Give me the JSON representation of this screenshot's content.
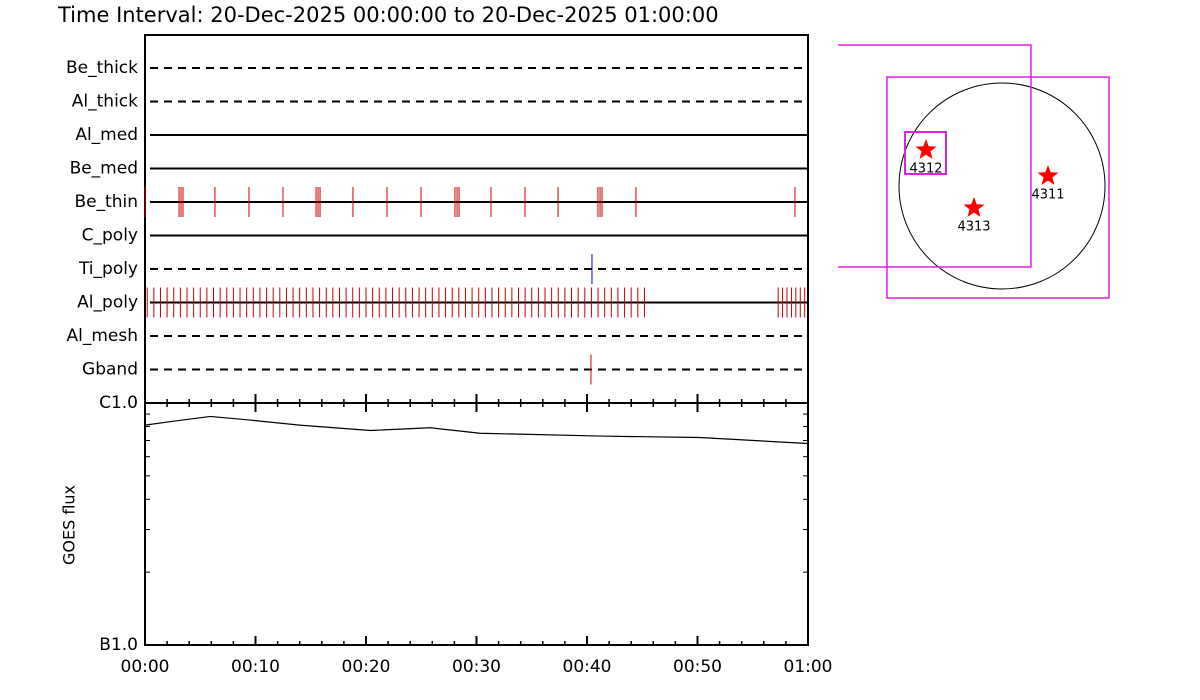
{
  "chart_data": [
    {
      "type": "timeline",
      "title": "Time Interval: 20-Dec-2025 00:00:00 to 20-Dec-2025 01:00:00",
      "xlim": [
        0,
        60
      ],
      "rows": [
        {
          "label": "Be_thick",
          "style": "dashed",
          "color": "#cc0000",
          "events": []
        },
        {
          "label": "Al_thick",
          "style": "dashed",
          "color": "#cc0000",
          "events": []
        },
        {
          "label": "Al_med",
          "style": "solid",
          "color": "#cc0000",
          "events": []
        },
        {
          "label": "Be_med",
          "style": "solid",
          "color": "#cc0000",
          "events": []
        },
        {
          "label": "Be_thin",
          "style": "solid",
          "color": "#cc0000",
          "events": [
            0,
            3.08,
            3.26,
            3.44,
            6.33,
            9.41,
            12.49,
            15.48,
            15.66,
            15.84,
            18.82,
            21.9,
            24.98,
            28.05,
            28.24,
            28.42,
            31.31,
            34.39,
            37.38,
            40.99,
            41.18,
            41.36,
            44.43,
            58.82
          ]
        },
        {
          "label": "C_poly",
          "style": "solid",
          "color": "#cc0000",
          "events": []
        },
        {
          "label": "Ti_poly",
          "style": "dashed",
          "color": "#0000cc",
          "events": [
            40.45
          ]
        },
        {
          "label": "Al_poly",
          "style": "solid",
          "color": "#cc0000",
          "events": [
            0.2,
            0.8,
            1.4,
            2.0,
            2.6,
            3.2,
            3.8,
            4.4,
            5.0,
            5.6,
            6.2,
            6.8,
            7.4,
            8.0,
            8.6,
            9.2,
            9.8,
            10.4,
            11.0,
            11.6,
            12.2,
            12.8,
            13.4,
            14.0,
            14.6,
            15.2,
            15.8,
            16.4,
            17.0,
            17.6,
            18.2,
            18.8,
            19.4,
            20.0,
            20.6,
            21.2,
            21.8,
            22.4,
            23.0,
            23.6,
            24.2,
            24.8,
            25.4,
            26.0,
            26.6,
            27.2,
            27.8,
            28.4,
            29.0,
            29.6,
            30.2,
            30.8,
            31.4,
            32.0,
            32.6,
            33.2,
            33.8,
            34.4,
            35.0,
            35.6,
            36.2,
            36.8,
            37.4,
            38.0,
            38.6,
            39.2,
            39.8,
            40.4,
            41.0,
            41.6,
            42.2,
            42.8,
            43.4,
            44.0,
            44.6,
            45.2,
            57.3,
            57.7,
            58.1,
            58.5,
            58.9,
            59.3,
            59.7
          ]
        },
        {
          "label": "Al_mesh",
          "style": "dashed",
          "color": "#cc0000",
          "events": []
        },
        {
          "label": "Gband",
          "style": "dashed",
          "color": "#cc0000",
          "events": [
            40.36
          ]
        }
      ]
    },
    {
      "type": "line",
      "ylabel": "GOES flux",
      "log_scale": true,
      "color": "#000000",
      "xlim": [
        0,
        60
      ],
      "xticks": [
        {
          "value": 0,
          "label": "00:00"
        },
        {
          "value": 10,
          "label": "00:10"
        },
        {
          "value": 20,
          "label": "00:20"
        },
        {
          "value": 30,
          "label": "00:30"
        },
        {
          "value": 40,
          "label": "00:40"
        },
        {
          "value": 50,
          "label": "00:50"
        },
        {
          "value": 60,
          "label": "01:00"
        }
      ],
      "minor_xticks": [
        2,
        4,
        6,
        8,
        12,
        14,
        16,
        18,
        22,
        24,
        26,
        28,
        32,
        34,
        36,
        38,
        42,
        44,
        46,
        48,
        52,
        54,
        56,
        58
      ],
      "ylim": [
        1e-07,
        1e-06
      ],
      "yticks": [
        {
          "value": 1e-07,
          "label": "B1.0"
        },
        {
          "value": 1e-06,
          "label": "C1.0"
        }
      ],
      "minor_yticks": [
        2e-07,
        3e-07,
        4e-07,
        5e-07,
        6e-07,
        7e-07,
        8e-07,
        9e-07
      ],
      "x": [
        0,
        2.5,
        5.9,
        9.5,
        14,
        20.4,
        25.8,
        30.3,
        41.2,
        50.2,
        60
      ],
      "values": [
        8.1e-07,
        8.4e-07,
        8.8e-07,
        8.5e-07,
        8.1e-07,
        7.7e-07,
        7.9e-07,
        7.5e-07,
        7.3e-07,
        7.2e-07,
        6.8e-07
      ]
    }
  ],
  "map": {
    "regions": [
      {
        "label": "4312"
      },
      {
        "label": "4313"
      },
      {
        "label": "4311"
      }
    ]
  }
}
